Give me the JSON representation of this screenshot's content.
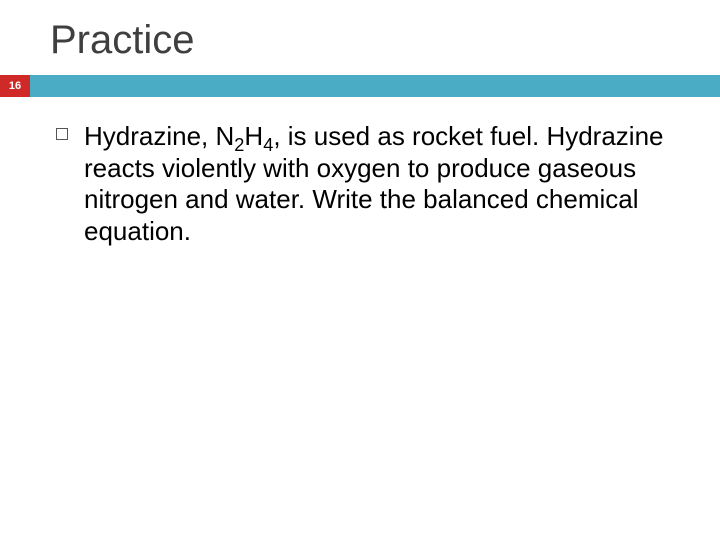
{
  "slide": {
    "title": "Practice",
    "pageNumber": "16",
    "body": {
      "pre": "Hydrazine, N",
      "sub1": "2",
      "mid1": "H",
      "sub2": "4",
      "post": ", is used as rocket fuel. Hydrazine reacts violently with oxygen to produce gaseous nitrogen and water. Write the balanced chemical equation."
    }
  },
  "style": {
    "background_color": "#ffffff",
    "title_color": "#3f3f3f",
    "title_fontsize": 40,
    "badge_bg": "#cf2a27",
    "badge_text_color": "#ffffff",
    "accent_bar_color": "#4bacc6",
    "body_fontsize": 26,
    "body_color": "#000000",
    "bullet_border_color": "#555555"
  }
}
